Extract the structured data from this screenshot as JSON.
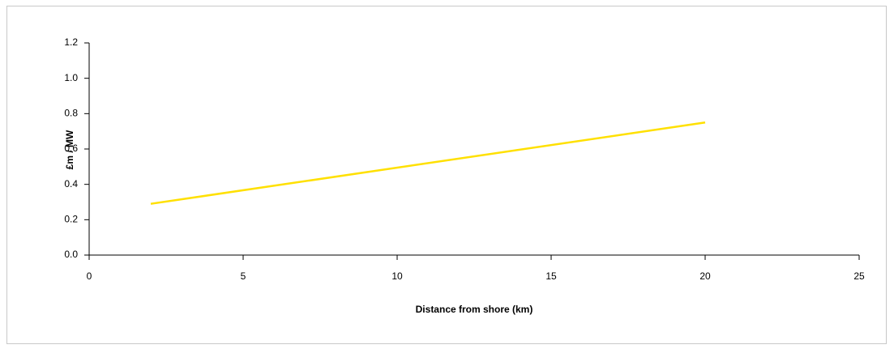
{
  "chart_data": {
    "type": "line",
    "x_label": "Distance from shore (km)",
    "y_label": "£m / MW",
    "x": [
      2,
      20
    ],
    "values": [
      0.29,
      0.75
    ],
    "color": "#ffe000",
    "xlim": [
      0,
      25
    ],
    "xticks": [
      0,
      5,
      10,
      15,
      20,
      25
    ],
    "ylim": [
      0,
      1.2
    ],
    "yticks": [
      {
        "value": 0,
        "label": "0.0"
      },
      0.2,
      0.4,
      0.6,
      0.8,
      {
        "value": 1,
        "label": "1.0"
      },
      1.2
    ],
    "grid": false
  }
}
